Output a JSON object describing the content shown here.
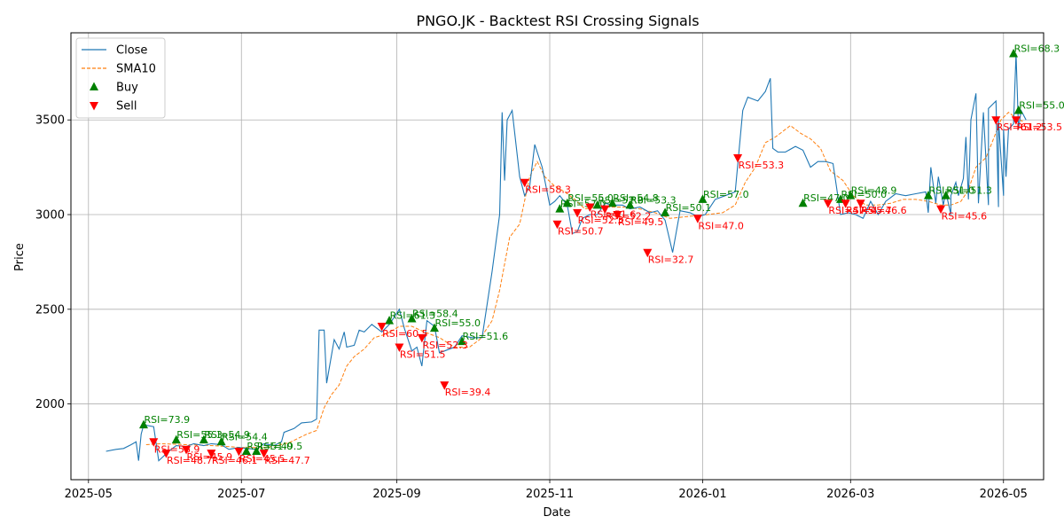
{
  "chart_data": {
    "type": "line",
    "title": "PNGO.JK - Backtest RSI Crossing Signals",
    "xlabel": "Date",
    "ylabel": "Price",
    "xlim": [
      "2025-04-24",
      "2026-05-17"
    ],
    "ylim": [
      1600,
      3960
    ],
    "grid": true,
    "legend_position": "top-left",
    "x_ticks": [
      "2025-05",
      "2025-07",
      "2025-09",
      "2025-11",
      "2026-01",
      "2026-03",
      "2026-05"
    ],
    "y_ticks": [
      2000,
      2500,
      3000,
      3500
    ],
    "colors": {
      "close": "#1f77b4",
      "sma": "#ff7f0e",
      "buy": "#008000",
      "sell": "#ff0000"
    },
    "legend": [
      "Close",
      "SMA10",
      "Buy",
      "Sell"
    ],
    "close": [
      [
        "2025-05-08",
        1750
      ],
      [
        "2025-05-12",
        1760
      ],
      [
        "2025-05-15",
        1765
      ],
      [
        "2025-05-18",
        1785
      ],
      [
        "2025-05-20",
        1800
      ],
      [
        "2025-05-21",
        1700
      ],
      [
        "2025-05-22",
        1840
      ],
      [
        "2025-05-23",
        1890
      ],
      [
        "2025-05-27",
        1880
      ],
      [
        "2025-05-29",
        1700
      ],
      [
        "2025-06-02",
        1750
      ],
      [
        "2025-06-05",
        1780
      ],
      [
        "2025-06-09",
        1775
      ],
      [
        "2025-06-12",
        1790
      ],
      [
        "2025-06-16",
        1780
      ],
      [
        "2025-06-19",
        1790
      ],
      [
        "2025-06-23",
        1785
      ],
      [
        "2025-06-26",
        1760
      ],
      [
        "2025-06-30",
        1770
      ],
      [
        "2025-07-03",
        1765
      ],
      [
        "2025-07-07",
        1760
      ],
      [
        "2025-07-10",
        1790
      ],
      [
        "2025-07-14",
        1780
      ],
      [
        "2025-07-17",
        1800
      ],
      [
        "2025-07-18",
        1850
      ],
      [
        "2025-07-22",
        1870
      ],
      [
        "2025-07-25",
        1900
      ],
      [
        "2025-07-29",
        1905
      ],
      [
        "2025-07-31",
        1920
      ],
      [
        "2025-08-01",
        2390
      ],
      [
        "2025-08-03",
        2390
      ],
      [
        "2025-08-04",
        2110
      ],
      [
        "2025-08-07",
        2340
      ],
      [
        "2025-08-09",
        2290
      ],
      [
        "2025-08-11",
        2380
      ],
      [
        "2025-08-12",
        2300
      ],
      [
        "2025-08-15",
        2310
      ],
      [
        "2025-08-17",
        2390
      ],
      [
        "2025-08-19",
        2380
      ],
      [
        "2025-08-22",
        2420
      ],
      [
        "2025-08-26",
        2380
      ],
      [
        "2025-08-29",
        2420
      ],
      [
        "2025-09-02",
        2500
      ],
      [
        "2025-09-04",
        2400
      ],
      [
        "2025-09-07",
        2280
      ],
      [
        "2025-09-09",
        2300
      ],
      [
        "2025-09-11",
        2200
      ],
      [
        "2025-09-13",
        2440
      ],
      [
        "2025-09-16",
        2410
      ],
      [
        "2025-09-18",
        2270
      ],
      [
        "2025-09-20",
        2280
      ],
      [
        "2025-09-24",
        2300
      ],
      [
        "2025-09-27",
        2360
      ],
      [
        "2025-10-01",
        2350
      ],
      [
        "2025-10-05",
        2350
      ],
      [
        "2025-10-09",
        2700
      ],
      [
        "2025-10-12",
        3000
      ],
      [
        "2025-10-13",
        3540
      ],
      [
        "2025-10-14",
        3180
      ],
      [
        "2025-10-15",
        3500
      ],
      [
        "2025-10-17",
        3550
      ],
      [
        "2025-10-20",
        3200
      ],
      [
        "2025-10-22",
        3100
      ],
      [
        "2025-10-24",
        3150
      ],
      [
        "2025-10-26",
        3370
      ],
      [
        "2025-10-29",
        3250
      ],
      [
        "2025-11-01",
        3050
      ],
      [
        "2025-11-03",
        3070
      ],
      [
        "2025-11-05",
        3100
      ],
      [
        "2025-11-08",
        3050
      ],
      [
        "2025-11-10",
        2900
      ],
      [
        "2025-11-12",
        2910
      ],
      [
        "2025-11-14",
        2980
      ],
      [
        "2025-11-17",
        3000
      ],
      [
        "2025-11-20",
        3000
      ],
      [
        "2025-11-23",
        3060
      ],
      [
        "2025-11-26",
        3050
      ],
      [
        "2025-11-30",
        3050
      ],
      [
        "2025-12-03",
        3030
      ],
      [
        "2025-12-07",
        3040
      ],
      [
        "2025-12-11",
        3010
      ],
      [
        "2025-12-14",
        3020
      ],
      [
        "2025-12-17",
        2970
      ],
      [
        "2025-12-20",
        2800
      ],
      [
        "2025-12-23",
        3020
      ],
      [
        "2025-12-27",
        3010
      ],
      [
        "2025-12-30",
        2990
      ],
      [
        "2026-01-02",
        3000
      ],
      [
        "2026-01-06",
        3080
      ],
      [
        "2026-01-10",
        3100
      ],
      [
        "2026-01-14",
        3120
      ],
      [
        "2026-01-17",
        3550
      ],
      [
        "2026-01-19",
        3620
      ],
      [
        "2026-01-23",
        3600
      ],
      [
        "2026-01-26",
        3650
      ],
      [
        "2026-01-28",
        3720
      ],
      [
        "2026-01-29",
        3350
      ],
      [
        "2026-01-31",
        3330
      ],
      [
        "2026-02-03",
        3330
      ],
      [
        "2026-02-07",
        3360
      ],
      [
        "2026-02-10",
        3340
      ],
      [
        "2026-02-13",
        3250
      ],
      [
        "2026-02-16",
        3280
      ],
      [
        "2026-02-19",
        3280
      ],
      [
        "2026-02-22",
        3270
      ],
      [
        "2026-02-25",
        3000
      ],
      [
        "2026-02-28",
        3010
      ],
      [
        "2026-03-03",
        3000
      ],
      [
        "2026-03-06",
        2980
      ],
      [
        "2026-03-09",
        3070
      ],
      [
        "2026-03-12",
        3000
      ],
      [
        "2026-03-15",
        3070
      ],
      [
        "2026-03-19",
        3110
      ],
      [
        "2026-03-23",
        3100
      ],
      [
        "2026-03-27",
        3110
      ],
      [
        "2026-03-31",
        3120
      ],
      [
        "2026-04-04",
        3060
      ],
      [
        "2026-04-07",
        3050
      ],
      [
        "2026-04-10",
        3000
      ],
      [
        "2026-04-13",
        3100
      ],
      [
        "2026-04-17",
        3080
      ],
      [
        "2026-04-21",
        3060
      ],
      [
        "2026-04-25",
        3050
      ],
      [
        "2026-04-29",
        3040
      ],
      [
        "2026-05-01",
        3100
      ],
      [
        "2026-04-01",
        3010
      ],
      [
        "2026-04-02",
        3250
      ],
      [
        "2026-04-05",
        3200
      ],
      [
        "2026-04-08",
        3120
      ],
      [
        "2026-04-10",
        3100
      ],
      [
        "2026-04-12",
        3170
      ],
      [
        "2026-04-15",
        3190
      ],
      [
        "2026-04-16",
        3410
      ],
      [
        "2026-04-18",
        3500
      ],
      [
        "2026-04-20",
        3640
      ],
      [
        "2026-04-23",
        3540
      ],
      [
        "2026-04-25",
        3560
      ],
      [
        "2026-04-28",
        3600
      ],
      [
        "2026-04-29",
        3500
      ],
      [
        "2026-05-01",
        3450
      ],
      [
        "2026-05-02",
        3200
      ],
      [
        "2026-05-03",
        3450
      ],
      [
        "2026-05-05",
        3480
      ],
      [
        "2026-05-06",
        3850
      ],
      [
        "2026-05-07",
        3450
      ],
      [
        "2026-05-08",
        3550
      ],
      [
        "2026-05-10",
        3500
      ]
    ],
    "sma10": [
      [
        "2025-05-24",
        1785
      ],
      [
        "2025-05-30",
        1790
      ],
      [
        "2025-06-09",
        1785
      ],
      [
        "2025-06-20",
        1780
      ],
      [
        "2025-07-01",
        1770
      ],
      [
        "2025-07-11",
        1770
      ],
      [
        "2025-07-20",
        1795
      ],
      [
        "2025-07-27",
        1840
      ],
      [
        "2025-07-31",
        1860
      ],
      [
        "2025-08-03",
        1980
      ],
      [
        "2025-08-06",
        2050
      ],
      [
        "2025-08-09",
        2100
      ],
      [
        "2025-08-12",
        2200
      ],
      [
        "2025-08-15",
        2250
      ],
      [
        "2025-08-19",
        2290
      ],
      [
        "2025-08-23",
        2350
      ],
      [
        "2025-08-28",
        2370
      ],
      [
        "2025-09-02",
        2410
      ],
      [
        "2025-09-07",
        2410
      ],
      [
        "2025-09-12",
        2380
      ],
      [
        "2025-09-18",
        2350
      ],
      [
        "2025-09-24",
        2300
      ],
      [
        "2025-09-30",
        2300
      ],
      [
        "2025-10-04",
        2340
      ],
      [
        "2025-10-09",
        2440
      ],
      [
        "2025-10-12",
        2600
      ],
      [
        "2025-10-16",
        2880
      ],
      [
        "2025-10-20",
        2950
      ],
      [
        "2025-10-24",
        3200
      ],
      [
        "2025-10-27",
        3280
      ],
      [
        "2025-10-30",
        3200
      ],
      [
        "2025-11-03",
        3150
      ],
      [
        "2025-11-07",
        3120
      ],
      [
        "2025-11-11",
        3080
      ],
      [
        "2025-11-15",
        3030
      ],
      [
        "2025-11-20",
        3040
      ],
      [
        "2025-11-25",
        3040
      ],
      [
        "2025-12-01",
        3040
      ],
      [
        "2025-12-07",
        3030
      ],
      [
        "2025-12-13",
        3010
      ],
      [
        "2025-12-19",
        2980
      ],
      [
        "2025-12-26",
        2990
      ],
      [
        "2026-01-03",
        3000
      ],
      [
        "2026-01-09",
        3010
      ],
      [
        "2026-01-14",
        3050
      ],
      [
        "2026-01-18",
        3170
      ],
      [
        "2026-01-22",
        3250
      ],
      [
        "2026-01-26",
        3380
      ],
      [
        "2026-01-30",
        3410
      ],
      [
        "2026-02-02",
        3440
      ],
      [
        "2026-02-05",
        3470
      ],
      [
        "2026-02-09",
        3430
      ],
      [
        "2026-02-13",
        3400
      ],
      [
        "2026-02-17",
        3350
      ],
      [
        "2026-02-21",
        3230
      ],
      [
        "2026-02-26",
        3180
      ],
      [
        "2026-03-02",
        3100
      ],
      [
        "2026-03-07",
        3050
      ],
      [
        "2026-03-12",
        3050
      ],
      [
        "2026-03-17",
        3060
      ],
      [
        "2026-03-22",
        3080
      ],
      [
        "2026-03-27",
        3080
      ],
      [
        "2026-04-01",
        3070
      ],
      [
        "2026-04-06",
        3050
      ],
      [
        "2026-04-10",
        3050
      ],
      [
        "2026-04-14",
        3070
      ],
      [
        "2026-04-17",
        3130
      ],
      [
        "2026-04-20",
        3250
      ],
      [
        "2026-04-24",
        3300
      ],
      [
        "2026-04-27",
        3400
      ],
      [
        "2026-04-30",
        3500
      ],
      [
        "2026-05-03",
        3540
      ],
      [
        "2026-05-06",
        3510
      ],
      [
        "2026-05-09",
        3490
      ]
    ],
    "buy_signals": [
      {
        "date": "2025-05-23",
        "price": 1890,
        "label": "RSI=73.9"
      },
      {
        "date": "2025-06-05",
        "price": 1810,
        "label": "RSI=55.3"
      },
      {
        "date": "2025-06-16",
        "price": 1810,
        "label": "RSI=54.9"
      },
      {
        "date": "2025-06-23",
        "price": 1800,
        "label": "RSI=54.4"
      },
      {
        "date": "2025-07-03",
        "price": 1750,
        "label": "RSI=51.0"
      },
      {
        "date": "2025-07-07",
        "price": 1750,
        "label": "RSI=49.5"
      },
      {
        "date": "2025-08-29",
        "price": 2440,
        "label": "RSI=61.3"
      },
      {
        "date": "2025-09-07",
        "price": 2450,
        "label": "RSI=58.4"
      },
      {
        "date": "2025-09-16",
        "price": 2400,
        "label": "RSI=55.0"
      },
      {
        "date": "2025-09-27",
        "price": 2330,
        "label": "RSI=51.6"
      },
      {
        "date": "2025-11-05",
        "price": 3030,
        "label": "RSI=57.0"
      },
      {
        "date": "2025-11-08",
        "price": 3060,
        "label": "RSI=55.0"
      },
      {
        "date": "2025-11-20",
        "price": 3050,
        "label": "RSI=52.0"
      },
      {
        "date": "2025-11-26",
        "price": 3060,
        "label": "RSI=54.8"
      },
      {
        "date": "2025-12-03",
        "price": 3050,
        "label": "RSI=53.3"
      },
      {
        "date": "2025-12-17",
        "price": 3010,
        "label": "RSI=50.1"
      },
      {
        "date": "2026-01-01",
        "price": 3080,
        "label": "RSI=57.0"
      },
      {
        "date": "2026-02-10",
        "price": 3060,
        "label": "RSI=47.0"
      },
      {
        "date": "2026-02-25",
        "price": 3080,
        "label": "RSI=50.0"
      },
      {
        "date": "2026-03-01",
        "price": 3100,
        "label": "RSI=48.9"
      },
      {
        "date": "2026-04-01",
        "price": 3100,
        "label": "RSI=51.0"
      },
      {
        "date": "2026-04-08",
        "price": 3100,
        "label": "RSI=51.3"
      },
      {
        "date": "2026-05-05",
        "price": 3850,
        "label": "RSI=68.3"
      },
      {
        "date": "2026-05-07",
        "price": 3550,
        "label": "RSI=55.0"
      }
    ],
    "sell_signals": [
      {
        "date": "2025-05-27",
        "price": 1800,
        "label": "RSI=56.9"
      },
      {
        "date": "2025-06-01",
        "price": 1740,
        "label": "RSI=48.7"
      },
      {
        "date": "2025-06-09",
        "price": 1760,
        "label": "RSI=45.9"
      },
      {
        "date": "2025-06-19",
        "price": 1740,
        "label": "RSI=46.1"
      },
      {
        "date": "2025-06-30",
        "price": 1750,
        "label": "RSI=45.5"
      },
      {
        "date": "2025-07-10",
        "price": 1740,
        "label": "RSI=47.7"
      },
      {
        "date": "2025-08-26",
        "price": 2410,
        "label": "RSI=60.5"
      },
      {
        "date": "2025-09-02",
        "price": 2300,
        "label": "RSI=51.5"
      },
      {
        "date": "2025-09-11",
        "price": 2350,
        "label": "RSI=52.3"
      },
      {
        "date": "2025-09-20",
        "price": 2100,
        "label": "RSI=39.4"
      },
      {
        "date": "2025-10-22",
        "price": 3170,
        "label": "RSI=58.3"
      },
      {
        "date": "2025-11-04",
        "price": 2950,
        "label": "RSI=50.7"
      },
      {
        "date": "2025-11-12",
        "price": 3010,
        "label": "RSI=52.3"
      },
      {
        "date": "2025-11-17",
        "price": 3040,
        "label": "RSI=51.6"
      },
      {
        "date": "2025-11-23",
        "price": 3030,
        "label": "RSI=52.2"
      },
      {
        "date": "2025-11-28",
        "price": 3000,
        "label": "RSI=49.5"
      },
      {
        "date": "2025-12-10",
        "price": 2800,
        "label": "RSI=32.7"
      },
      {
        "date": "2025-12-30",
        "price": 2980,
        "label": "RSI=47.0"
      },
      {
        "date": "2026-01-15",
        "price": 3300,
        "label": "RSI=53.3"
      },
      {
        "date": "2026-02-20",
        "price": 3060,
        "label": "RSI=47.5"
      },
      {
        "date": "2026-02-27",
        "price": 3060,
        "label": "RSI=45.7"
      },
      {
        "date": "2026-03-05",
        "price": 3060,
        "label": "RSI=46.6"
      },
      {
        "date": "2026-04-06",
        "price": 3030,
        "label": "RSI=45.6"
      },
      {
        "date": "2026-04-28",
        "price": 3500,
        "label": "RSI=61.2"
      },
      {
        "date": "2026-05-06",
        "price": 3500,
        "label": "RSI=53.5"
      }
    ]
  }
}
